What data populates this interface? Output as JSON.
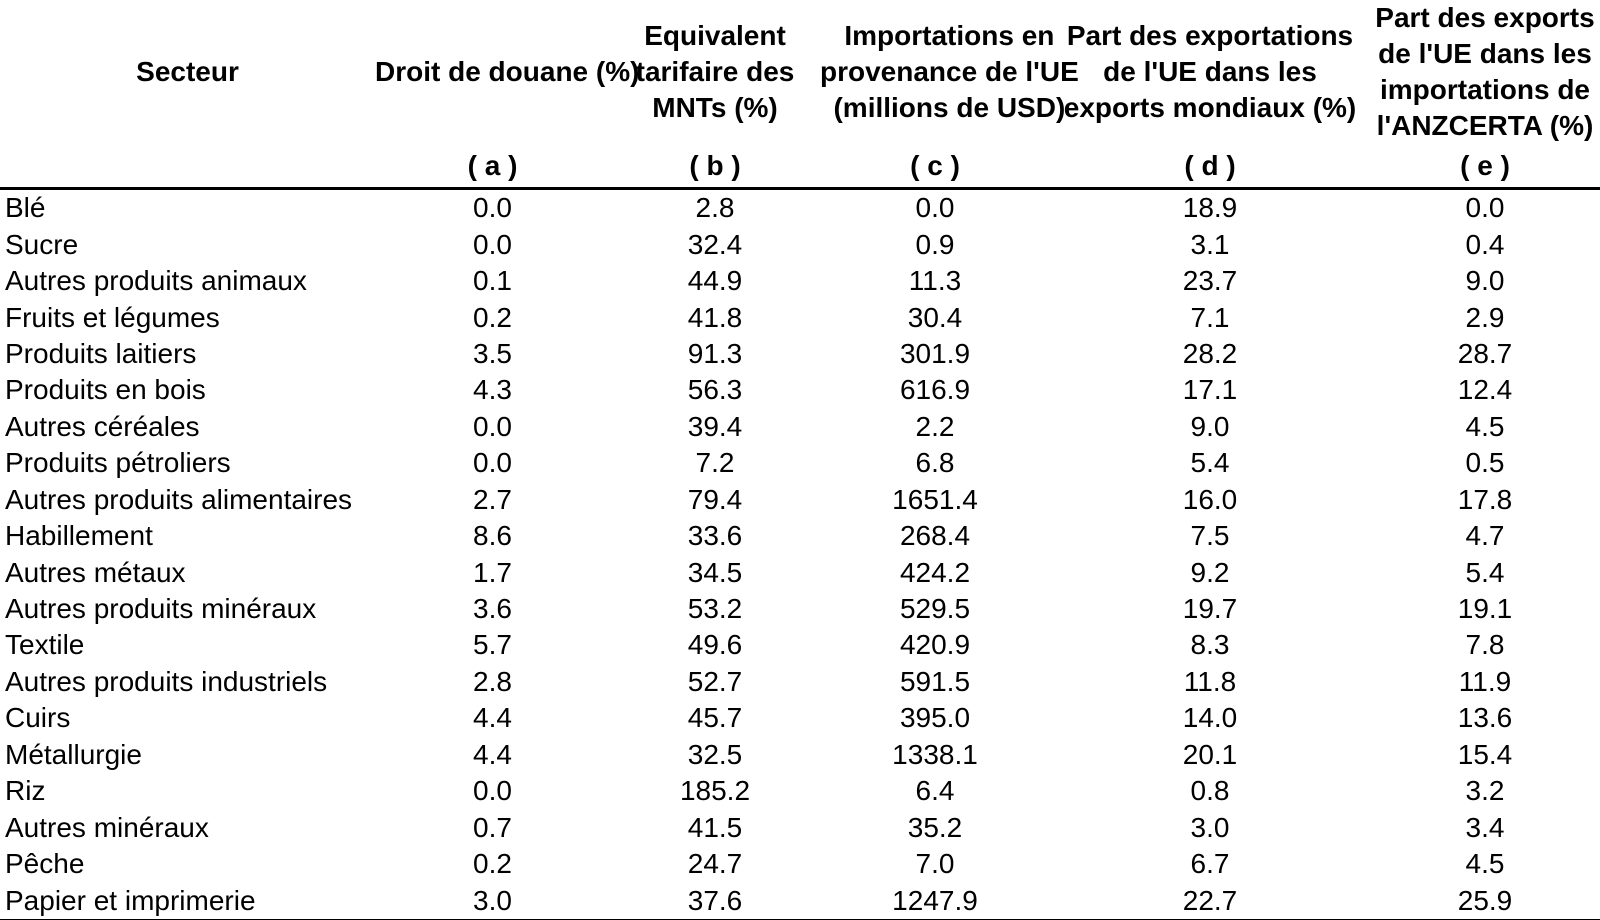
{
  "page": {
    "background_color": "#ffffff",
    "text_color": "#000000",
    "rule_color": "#000000"
  },
  "table": {
    "columns": [
      {
        "id": "secteur",
        "label": "Secteur",
        "sub_label": ""
      },
      {
        "id": "droit-de-douane",
        "label": "Droit de douane (%)",
        "sub_label": "( a )"
      },
      {
        "id": "equivalent-mnt",
        "label": "Equivalent\ntarifaire des\nMNTs (%)",
        "sub_label": "( b )"
      },
      {
        "id": "importations-ue",
        "label": "Importations en\nprovenance de l'UE\n(millions de USD)",
        "sub_label": "( c )"
      },
      {
        "id": "part-exports-monde",
        "label": "Part des exportations\nde l'UE dans les\nexports mondiaux (%)",
        "sub_label": "( d )"
      },
      {
        "id": "part-imports-anzcerta",
        "label": "Part des exports\nde l'UE dans les\nimportations de\nl'ANZCERTA (%)",
        "sub_label": "( e )"
      }
    ],
    "rows": [
      [
        "Blé",
        "0.0",
        "2.8",
        "0.0",
        "18.9",
        "0.0"
      ],
      [
        "Sucre",
        "0.0",
        "32.4",
        "0.9",
        "3.1",
        "0.4"
      ],
      [
        "Autres produits animaux",
        "0.1",
        "44.9",
        "11.3",
        "23.7",
        "9.0"
      ],
      [
        "Fruits et légumes",
        "0.2",
        "41.8",
        "30.4",
        "7.1",
        "2.9"
      ],
      [
        "Produits laitiers",
        "3.5",
        "91.3",
        "301.9",
        "28.2",
        "28.7"
      ],
      [
        "Produits en bois",
        "4.3",
        "56.3",
        "616.9",
        "17.1",
        "12.4"
      ],
      [
        "Autres céréales",
        "0.0",
        "39.4",
        "2.2",
        "9.0",
        "4.5"
      ],
      [
        "Produits pétroliers",
        "0.0",
        "7.2",
        "6.8",
        "5.4",
        "0.5"
      ],
      [
        "Autres produits alimentaires",
        "2.7",
        "79.4",
        "1651.4",
        "16.0",
        "17.8"
      ],
      [
        "Habillement",
        "8.6",
        "33.6",
        "268.4",
        "7.5",
        "4.7"
      ],
      [
        "Autres métaux",
        "1.7",
        "34.5",
        "424.2",
        "9.2",
        "5.4"
      ],
      [
        "Autres produits minéraux",
        "3.6",
        "53.2",
        "529.5",
        "19.7",
        "19.1"
      ],
      [
        "Textile",
        "5.7",
        "49.6",
        "420.9",
        "8.3",
        "7.8"
      ],
      [
        "Autres produits industriels",
        "2.8",
        "52.7",
        "591.5",
        "11.8",
        "11.9"
      ],
      [
        "Cuirs",
        "4.4",
        "45.7",
        "395.0",
        "14.0",
        "13.6"
      ],
      [
        "Métallurgie",
        "4.4",
        "32.5",
        "1338.1",
        "20.1",
        "15.4"
      ],
      [
        "Riz",
        "0.0",
        "185.2",
        "6.4",
        "0.8",
        "3.2"
      ],
      [
        "Autres minéraux",
        "0.7",
        "41.5",
        "35.2",
        "3.0",
        "3.4"
      ],
      [
        "Pêche",
        "0.2",
        "24.7",
        "7.0",
        "6.7",
        "4.5"
      ],
      [
        "Papier et imprimerie",
        "3.0",
        "37.6",
        "1247.9",
        "22.7",
        "25.9"
      ]
    ]
  },
  "chart_data": {
    "type": "table",
    "title": "",
    "columns": [
      "Secteur",
      "Droit de douane (%) ( a )",
      "Equivalent tarifaire des MNTs (%) ( b )",
      "Importations en provenance de l'UE (millions de USD) ( c )",
      "Part des exportations de l'UE dans les exports mondiaux (%) ( d )",
      "Part des exports de l'UE dans les importations de l'ANZCERTA (%) ( e )"
    ],
    "rows": [
      [
        "Blé",
        0.0,
        2.8,
        0.0,
        18.9,
        0.0
      ],
      [
        "Sucre",
        0.0,
        32.4,
        0.9,
        3.1,
        0.4
      ],
      [
        "Autres produits animaux",
        0.1,
        44.9,
        11.3,
        23.7,
        9.0
      ],
      [
        "Fruits et légumes",
        0.2,
        41.8,
        30.4,
        7.1,
        2.9
      ],
      [
        "Produits laitiers",
        3.5,
        91.3,
        301.9,
        28.2,
        28.7
      ],
      [
        "Produits en bois",
        4.3,
        56.3,
        616.9,
        17.1,
        12.4
      ],
      [
        "Autres céréales",
        0.0,
        39.4,
        2.2,
        9.0,
        4.5
      ],
      [
        "Produits pétroliers",
        0.0,
        7.2,
        6.8,
        5.4,
        0.5
      ],
      [
        "Autres produits alimentaires",
        2.7,
        79.4,
        1651.4,
        16.0,
        17.8
      ],
      [
        "Habillement",
        8.6,
        33.6,
        268.4,
        7.5,
        4.7
      ],
      [
        "Autres métaux",
        1.7,
        34.5,
        424.2,
        9.2,
        5.4
      ],
      [
        "Autres produits minéraux",
        3.6,
        53.2,
        529.5,
        19.7,
        19.1
      ],
      [
        "Textile",
        5.7,
        49.6,
        420.9,
        8.3,
        7.8
      ],
      [
        "Autres produits industriels",
        2.8,
        52.7,
        591.5,
        11.8,
        11.9
      ],
      [
        "Cuirs",
        4.4,
        45.7,
        395.0,
        14.0,
        13.6
      ],
      [
        "Métallurgie",
        4.4,
        32.5,
        1338.1,
        20.1,
        15.4
      ],
      [
        "Riz",
        0.0,
        185.2,
        6.4,
        0.8,
        3.2
      ],
      [
        "Autres minéraux",
        0.7,
        41.5,
        35.2,
        3.0,
        3.4
      ],
      [
        "Pêche",
        0.2,
        24.7,
        7.0,
        6.7,
        4.5
      ],
      [
        "Papier et imprimerie",
        3.0,
        37.6,
        1247.9,
        22.7,
        25.9
      ]
    ]
  }
}
